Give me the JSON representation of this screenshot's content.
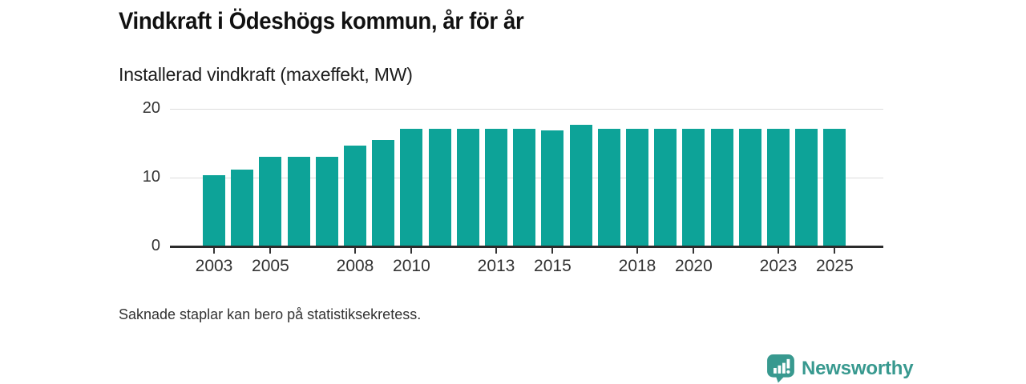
{
  "title": "Vindkraft i Ödeshögs kommun, år för år",
  "subtitle": "Installerad vindkraft (maxeffekt, MW)",
  "footnote": "Saknade staplar kan bero på statistiksekretess.",
  "branding": {
    "name": "Newsworthy",
    "icon": "speech-bubble-bar-chart-icon",
    "color": "#38998f"
  },
  "colors": {
    "bar": "#0da398",
    "axis": "#2b2b2b",
    "grid": "#dcdcdc",
    "tick": "#333333",
    "label": "#333333"
  },
  "chart_data": {
    "type": "bar",
    "title": "Vindkraft i Ödeshögs kommun, år för år",
    "subtitle": "Installerad vindkraft (maxeffekt, MW)",
    "xlabel": "",
    "ylabel": "Installerad vindkraft (maxeffekt, MW)",
    "x": [
      2003,
      2004,
      2005,
      2006,
      2007,
      2008,
      2009,
      2010,
      2011,
      2012,
      2013,
      2014,
      2015,
      2016,
      2017,
      2018,
      2019,
      2020,
      2021,
      2022,
      2023,
      2024,
      2025
    ],
    "values": [
      10.4,
      11.2,
      13,
      13,
      13,
      14.7,
      15.5,
      17.1,
      17.1,
      17.1,
      17.1,
      17.1,
      16.9,
      17.7,
      17.1,
      17.1,
      17.1,
      17.1,
      17.1,
      17.1,
      17.1,
      17.1,
      17.1
    ],
    "ylim": [
      0,
      20
    ],
    "yticks": [
      0,
      10,
      20
    ],
    "xtick_labels": [
      2003,
      2005,
      2008,
      2010,
      2013,
      2015,
      2018,
      2020,
      2023,
      2025
    ],
    "grid": "horizontal",
    "legend": "none",
    "bar_color": "#0da398"
  }
}
